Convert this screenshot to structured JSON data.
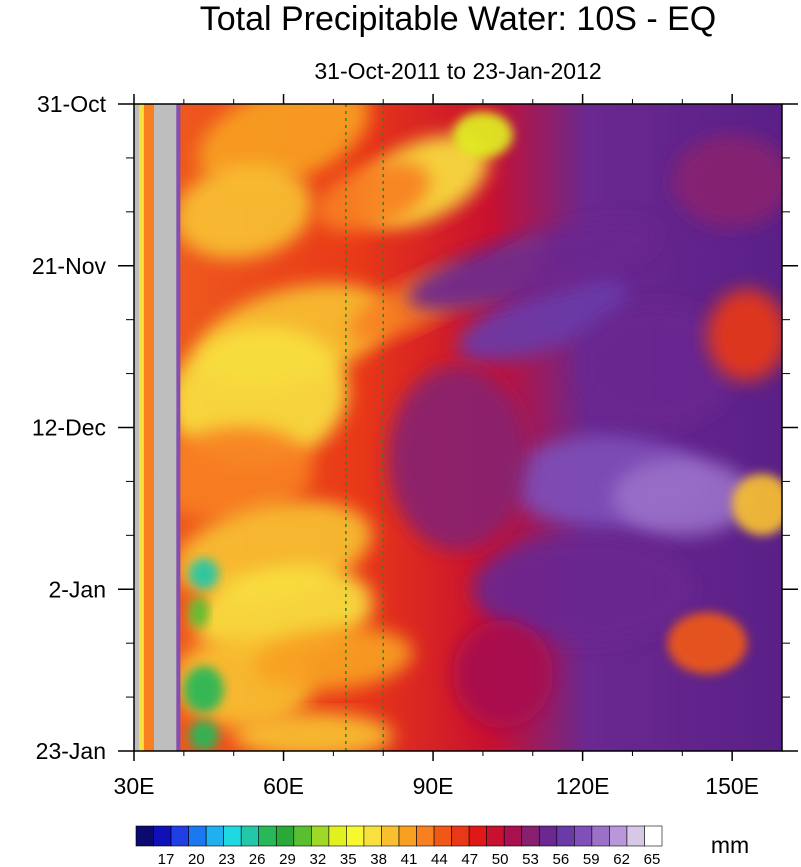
{
  "chart_data": {
    "type": "heatmap",
    "title": "Total Precipitable Water: 10S - EQ",
    "subtitle": "31-Oct-2011 to 23-Jan-2012",
    "x_axis": {
      "range": [
        30,
        160
      ],
      "ticks": [
        30,
        60,
        90,
        120,
        150
      ],
      "tick_labels": [
        "30E",
        "60E",
        "90E",
        "120E",
        "150E"
      ]
    },
    "y_axis": {
      "range": [
        "2011-10-31",
        "2012-01-23"
      ],
      "ticks": [
        "2011-10-31",
        "2011-11-21",
        "2011-12-12",
        "2012-01-02",
        "2012-01-23"
      ],
      "tick_labels": [
        "31-Oct",
        "21-Nov",
        "12-Dec",
        "2-Jan",
        "23-Jan"
      ],
      "reversed": true
    },
    "colorbar": {
      "unit": "mm",
      "levels": [
        17,
        20,
        23,
        26,
        29,
        32,
        35,
        38,
        41,
        44,
        47,
        50,
        53,
        56,
        59,
        62,
        65
      ],
      "colors": [
        "#0a0a70",
        "#1010b8",
        "#1f3ee6",
        "#1c78f0",
        "#20b0f0",
        "#20d8e0",
        "#22c8a8",
        "#28b858",
        "#2aa838",
        "#58c030",
        "#a0d828",
        "#e0f020",
        "#f8f830",
        "#f8e040",
        "#f8c030",
        "#f8a020",
        "#f88020",
        "#f05818",
        "#e83818",
        "#e01818",
        "#c81030",
        "#a81050",
        "#882070",
        "#6a2890",
        "#6a3aa8",
        "#7e50b8",
        "#9a70c8",
        "#b898d8",
        "#d8c8e8",
        "#ffffff"
      ]
    },
    "reference_lines_lon": [
      72.5,
      80
    ],
    "missing_bands_lon": [
      [
        30,
        31
      ],
      [
        34,
        38.5
      ]
    ]
  }
}
